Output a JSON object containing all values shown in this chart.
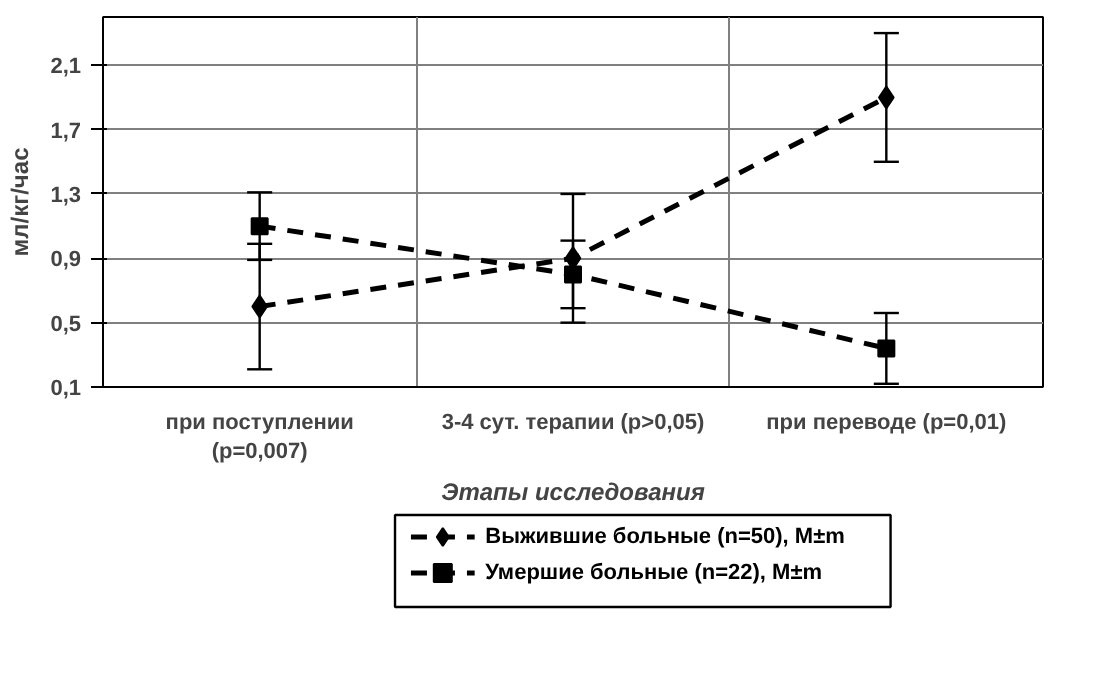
{
  "chart_data": {
    "type": "line",
    "xlabel": "Этапы исследования",
    "ylabel": "мл/кг/час",
    "categories": [
      "при поступлении\n(p=0,007)",
      "3-4 сут. терапии (p>0,05)",
      "при переводе (p=0,01)"
    ],
    "series": [
      {
        "name": "Выжившие больные (n=50), M±m",
        "color": "#000000",
        "values": [
          0.6,
          0.9,
          1.9
        ],
        "errors": [
          0.39,
          0.4,
          0.4
        ],
        "marker": "diamond",
        "line_style": "dashed"
      },
      {
        "name": "Умершие больные (n=22), M±m",
        "color": "#000000",
        "values": [
          1.1,
          0.8,
          0.34
        ],
        "errors": [
          0.21,
          0.21,
          0.22
        ],
        "marker": "square",
        "line_style": "dashed"
      }
    ],
    "ylim": [
      0.1,
      2.4
    ],
    "yticks": [
      {
        "value": 0.1,
        "label": "0,1"
      },
      {
        "value": 0.5,
        "label": "0,5"
      },
      {
        "value": 0.9,
        "label": "0,9"
      },
      {
        "value": 1.3,
        "label": "1,3"
      },
      {
        "value": 1.7,
        "label": "1,7"
      },
      {
        "value": 2.1,
        "label": "2,1"
      }
    ],
    "grid": true,
    "legend": "bottom"
  }
}
